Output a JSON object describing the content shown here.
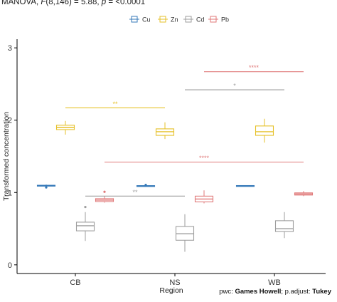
{
  "chart_data": {
    "type": "boxplot",
    "subtitle_parts": {
      "pre": "MANOVA, ",
      "f": "F",
      "stat": "(8,146) = 5.88, ",
      "p": "p",
      "post": " = <0.0001"
    },
    "xlabel": "Region",
    "ylabel": "Transformed concentration",
    "categories": [
      "CB",
      "NS",
      "WB"
    ],
    "yticks": [
      0,
      1,
      2,
      3
    ],
    "ylim": [
      -0.12,
      3.12
    ],
    "legend_position": "top",
    "legend_title": "",
    "series": [
      {
        "name": "Cu",
        "color": "#3579b9",
        "boxes": [
          {
            "min": 1.08,
            "q1": 1.09,
            "median": 1.095,
            "q3": 1.1,
            "max": 1.11,
            "outliers": [
              1.07
            ]
          },
          {
            "min": 1.08,
            "q1": 1.085,
            "median": 1.09,
            "q3": 1.095,
            "max": 1.1,
            "outliers": [
              1.105
            ]
          },
          {
            "min": 1.085,
            "q1": 1.09,
            "median": 1.093,
            "q3": 1.096,
            "max": 1.1,
            "outliers": []
          }
        ]
      },
      {
        "name": "Zn",
        "color": "#e6c12a",
        "boxes": [
          {
            "min": 1.8,
            "q1": 1.87,
            "median": 1.9,
            "q3": 1.93,
            "max": 1.99,
            "outliers": []
          },
          {
            "min": 1.74,
            "q1": 1.79,
            "median": 1.84,
            "q3": 1.88,
            "max": 1.97,
            "outliers": []
          },
          {
            "min": 1.69,
            "q1": 1.79,
            "median": 1.84,
            "q3": 1.92,
            "max": 2.02,
            "outliers": []
          }
        ]
      },
      {
        "name": "Cd",
        "color": "#9e9e9e",
        "boxes": [
          {
            "min": 0.33,
            "q1": 0.47,
            "median": 0.54,
            "q3": 0.59,
            "max": 0.73,
            "outliers": [
              0.8
            ]
          },
          {
            "min": 0.18,
            "q1": 0.34,
            "median": 0.43,
            "q3": 0.53,
            "max": 0.7,
            "outliers": []
          },
          {
            "min": 0.37,
            "q1": 0.46,
            "median": 0.5,
            "q3": 0.61,
            "max": 0.73,
            "outliers": []
          }
        ]
      },
      {
        "name": "Pb",
        "color": "#e07a7a",
        "boxes": [
          {
            "min": 0.86,
            "q1": 0.875,
            "median": 0.895,
            "q3": 0.915,
            "max": 0.95,
            "outliers": [
              1.01
            ]
          },
          {
            "min": 0.85,
            "q1": 0.87,
            "median": 0.91,
            "q3": 0.95,
            "max": 1.03,
            "outliers": []
          },
          {
            "min": 0.95,
            "q1": 0.965,
            "median": 0.98,
            "q3": 0.995,
            "max": 1.02,
            "outliers": []
          }
        ]
      }
    ],
    "significance": [
      {
        "series": "Pb",
        "from": "NS",
        "to": "WB",
        "y": 2.67,
        "label": "****"
      },
      {
        "series": "Cd",
        "from": "NS",
        "to": "WB",
        "y": 2.42,
        "label": "*"
      },
      {
        "series": "Zn",
        "from": "CB",
        "to": "NS",
        "y": 2.17,
        "label": "**"
      },
      {
        "series": "Pb",
        "from": "CB",
        "to": "WB",
        "y": 1.42,
        "label": "****"
      },
      {
        "series": "Cd",
        "from": "CB",
        "to": "NS",
        "y": 0.95,
        "label": "**"
      }
    ],
    "caption_parts": {
      "pre1": "pwc: ",
      "test": "Games Howell",
      "pre2": "; p.adjust: ",
      "adjust": "Tukey"
    }
  }
}
